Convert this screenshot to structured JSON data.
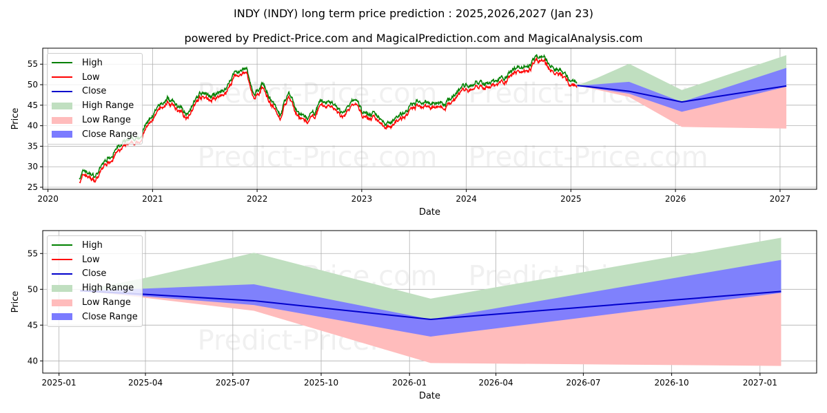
{
  "title": "INDY (INDY) long term price prediction : 2025,2026,2027 (Jan 23)",
  "subtitle": "powered by Predict-Price.com and MagicalPrediction.com and MagicalAnalysis.com",
  "watermark": "Predict-Price.com",
  "colors": {
    "high": "#008000",
    "low": "#ff0000",
    "close": "#0000cc",
    "high_range": "#c0dfc0",
    "low_range": "#ffbcbc",
    "close_range": "#7b7bff"
  },
  "legend": [
    "High",
    "Low",
    "Close",
    "High Range",
    "Low Range",
    "Close Range"
  ],
  "chart_data": [
    {
      "type": "line",
      "xlabel": "Date",
      "ylabel": "Price",
      "xlim": [
        2019.95,
        2027.35
      ],
      "ylim": [
        24.5,
        58.9
      ],
      "xticks": [
        2020,
        2021,
        2022,
        2023,
        2024,
        2025,
        2026,
        2027
      ],
      "xtick_labels": [
        "2020",
        "2021",
        "2022",
        "2023",
        "2024",
        "2025",
        "2026",
        "2027"
      ],
      "yticks": [
        25,
        30,
        35,
        40,
        45,
        50,
        55
      ],
      "ytick_labels": [
        "25",
        "30",
        "35",
        "40",
        "45",
        "50",
        "55"
      ],
      "grid": true,
      "legend_position": "top-left",
      "historical_waypoints": [
        [
          2020.3,
          27
        ],
        [
          2020.35,
          28.5
        ],
        [
          2020.45,
          27.2
        ],
        [
          2020.55,
          31
        ],
        [
          2020.65,
          33.8
        ],
        [
          2020.75,
          35.3
        ],
        [
          2020.85,
          36
        ],
        [
          2021.0,
          42
        ],
        [
          2021.15,
          46.2
        ],
        [
          2021.25,
          44
        ],
        [
          2021.32,
          42.5
        ],
        [
          2021.45,
          47.3
        ],
        [
          2021.6,
          46.5
        ],
        [
          2021.7,
          48.5
        ],
        [
          2021.78,
          52.5
        ],
        [
          2021.9,
          53
        ],
        [
          2021.97,
          46
        ],
        [
          2022.05,
          50
        ],
        [
          2022.15,
          45
        ],
        [
          2022.22,
          42.5
        ],
        [
          2022.3,
          47.5
        ],
        [
          2022.36,
          44
        ],
        [
          2022.42,
          42
        ],
        [
          2022.5,
          41
        ],
        [
          2022.62,
          45
        ],
        [
          2022.72,
          45.3
        ],
        [
          2022.8,
          42.5
        ],
        [
          2022.95,
          45.8
        ],
        [
          2023.0,
          43
        ],
        [
          2023.15,
          42
        ],
        [
          2023.25,
          40.2
        ],
        [
          2023.4,
          42.5
        ],
        [
          2023.55,
          45.5
        ],
        [
          2023.7,
          45.5
        ],
        [
          2023.8,
          44.5
        ],
        [
          2023.95,
          49
        ],
        [
          2024.1,
          50
        ],
        [
          2024.3,
          50.5
        ],
        [
          2024.5,
          53.8
        ],
        [
          2024.6,
          54.5
        ],
        [
          2024.72,
          56.5
        ],
        [
          2024.8,
          54
        ],
        [
          2024.9,
          52.5
        ],
        [
          2025.06,
          49.8
        ]
      ]
    },
    {
      "type": "area",
      "xlabel": "Date",
      "ylabel": "Price",
      "xlim": [
        "2024-12-15",
        "2027-03-01"
      ],
      "ylim": [
        38.3,
        58.2
      ],
      "xticks": [
        "2025-01-01",
        "2025-04-01",
        "2025-07-01",
        "2025-10-01",
        "2026-01-01",
        "2026-04-01",
        "2026-07-01",
        "2026-10-01",
        "2027-01-01"
      ],
      "xtick_labels": [
        "2025-01",
        "2025-04",
        "2025-07",
        "2025-10",
        "2026-01",
        "2026-04",
        "2026-07",
        "2026-10",
        "2027-01"
      ],
      "yticks": [
        40,
        45,
        50,
        55
      ],
      "ytick_labels": [
        "40",
        "45",
        "50",
        "55"
      ],
      "grid": true,
      "legend_position": "top-left"
    }
  ],
  "forecast": {
    "dates": [
      "2025-01-23",
      "2025-04-01",
      "2025-07-23",
      "2026-01-23",
      "2027-01-23"
    ],
    "high_upper": [
      49.8,
      51.6,
      55.1,
      48.7,
      57.2
    ],
    "close_upper": [
      49.8,
      50.1,
      50.7,
      45.8,
      54.1
    ],
    "close": [
      49.8,
      49.3,
      48.4,
      45.8,
      49.7
    ],
    "close_lower": [
      49.8,
      49.0,
      47.8,
      43.4,
      49.5
    ],
    "low": [
      49.8,
      48.8,
      47.0,
      39.7,
      39.3
    ]
  }
}
